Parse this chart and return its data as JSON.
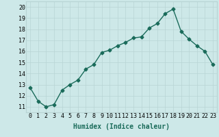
{
  "x": [
    0,
    1,
    2,
    3,
    4,
    5,
    6,
    7,
    8,
    9,
    10,
    11,
    12,
    13,
    14,
    15,
    16,
    17,
    18,
    19,
    20,
    21,
    22,
    23
  ],
  "y": [
    12.7,
    11.5,
    11.0,
    11.2,
    12.5,
    13.0,
    13.4,
    14.4,
    14.8,
    15.9,
    16.1,
    16.5,
    16.8,
    17.2,
    17.3,
    18.1,
    18.5,
    19.4,
    19.8,
    17.8,
    17.1,
    16.5,
    16.0,
    14.8
  ],
  "xlabel": "Humidex (Indice chaleur)",
  "xlim": [
    -0.5,
    23.5
  ],
  "ylim": [
    10.5,
    20.5
  ],
  "yticks": [
    11,
    12,
    13,
    14,
    15,
    16,
    17,
    18,
    19,
    20
  ],
  "xticks": [
    0,
    1,
    2,
    3,
    4,
    5,
    6,
    7,
    8,
    9,
    10,
    11,
    12,
    13,
    14,
    15,
    16,
    17,
    18,
    19,
    20,
    21,
    22,
    23
  ],
  "bg_color": "#cde8e8",
  "line_color": "#1a6b5a",
  "grid_color": "#b8d4d4",
  "marker": "D",
  "marker_size": 2.5,
  "line_width": 1.0,
  "xlabel_fontsize": 7,
  "tick_fontsize": 6
}
